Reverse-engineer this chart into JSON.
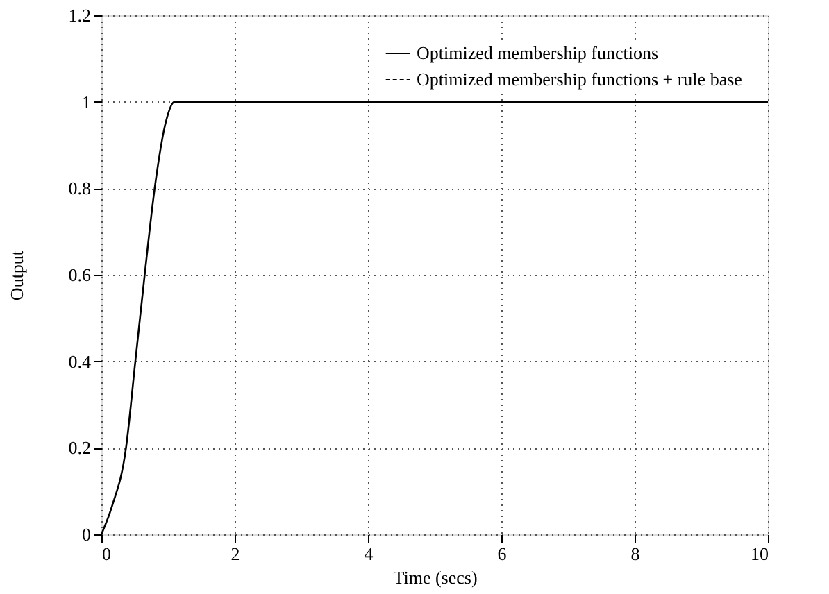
{
  "chart_data": {
    "type": "line",
    "xlabel": "Time (secs)",
    "ylabel": "Output",
    "xlim": [
      0,
      10
    ],
    "xticks": [
      0,
      2,
      4,
      6,
      8,
      10
    ],
    "ylim": [
      0,
      1.2
    ],
    "yticks": [
      0,
      0.2,
      0.4,
      0.6,
      0.8,
      1,
      1.2
    ],
    "grid": true,
    "legend": "top right",
    "series": [
      {
        "name": "Optimized membership functions",
        "color": "#000000",
        "line_style": "solid",
        "x": [
          0,
          0.16,
          0.37,
          0.51,
          0.65,
          0.8,
          0.97,
          1.1,
          10
        ],
        "values": [
          0,
          0.065,
          0.2,
          0.4,
          0.6,
          0.8,
          0.955,
          1,
          1
        ]
      },
      {
        "name": "Optimized membership functions + rule base",
        "color": "#000000",
        "line_style": "dashed"
      }
    ]
  }
}
